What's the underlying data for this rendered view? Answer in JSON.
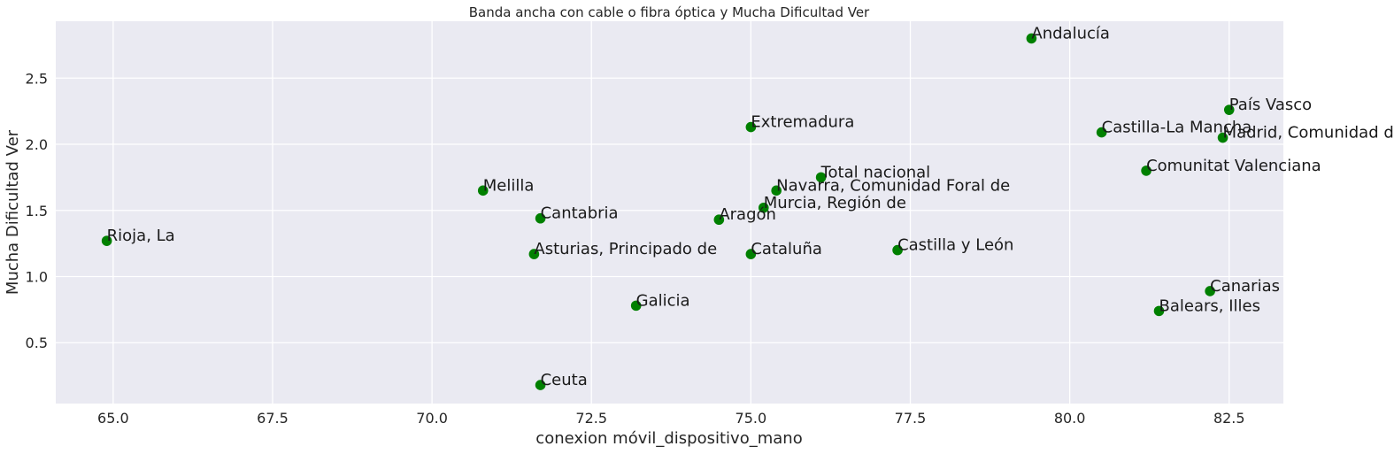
{
  "chart_data": {
    "type": "scatter",
    "title": "Banda ancha con cable o fibra óptica y Mucha Dificultad Ver",
    "xlabel": "conexion móvil_dispositivo_mano",
    "ylabel": "Mucha Dificultad Ver",
    "xlim": [
      64.1,
      83.35
    ],
    "ylim": [
      0.04,
      2.93
    ],
    "xticks": [
      65.0,
      67.5,
      70.0,
      72.5,
      75.0,
      77.5,
      80.0,
      82.5
    ],
    "xtick_labels": [
      "65.0",
      "67.5",
      "70.0",
      "72.5",
      "75.0",
      "77.5",
      "80.0",
      "82.5"
    ],
    "yticks": [
      0.5,
      1.0,
      1.5,
      2.0,
      2.5
    ],
    "ytick_labels": [
      "0.5",
      "1.0",
      "1.5",
      "2.0",
      "2.5"
    ],
    "grid": true,
    "point_color": "#008000",
    "background_color": "#eaeaf2",
    "grid_color": "#ffffff",
    "points": [
      {
        "label": "Andalucía",
        "x": 79.4,
        "y": 2.8
      },
      {
        "label": "País Vasco",
        "x": 82.5,
        "y": 2.26
      },
      {
        "label": "Extremadura",
        "x": 75.0,
        "y": 2.13
      },
      {
        "label": "Castilla-La Mancha",
        "x": 80.5,
        "y": 2.09
      },
      {
        "label": "Madrid, Comunidad de",
        "x": 82.4,
        "y": 2.05
      },
      {
        "label": "Comunitat Valenciana",
        "x": 81.2,
        "y": 1.8
      },
      {
        "label": "Total nacional",
        "x": 76.1,
        "y": 1.75
      },
      {
        "label": "Navarra, Comunidad Foral de",
        "x": 75.4,
        "y": 1.65
      },
      {
        "label": "Melilla",
        "x": 70.8,
        "y": 1.65
      },
      {
        "label": "Murcia, Región de",
        "x": 75.2,
        "y": 1.52
      },
      {
        "label": "Cantabria",
        "x": 71.7,
        "y": 1.44
      },
      {
        "label": "Aragón",
        "x": 74.5,
        "y": 1.43
      },
      {
        "label": "Rioja, La",
        "x": 64.9,
        "y": 1.27
      },
      {
        "label": "Castilla y León",
        "x": 77.3,
        "y": 1.2
      },
      {
        "label": "Asturias, Principado de",
        "x": 71.6,
        "y": 1.17
      },
      {
        "label": "Cataluña",
        "x": 75.0,
        "y": 1.17
      },
      {
        "label": "Canarias",
        "x": 82.2,
        "y": 0.89
      },
      {
        "label": "Galicia",
        "x": 73.2,
        "y": 0.78
      },
      {
        "label": "Balears, Illes",
        "x": 81.4,
        "y": 0.74
      },
      {
        "label": "Ceuta",
        "x": 71.7,
        "y": 0.18
      }
    ]
  }
}
